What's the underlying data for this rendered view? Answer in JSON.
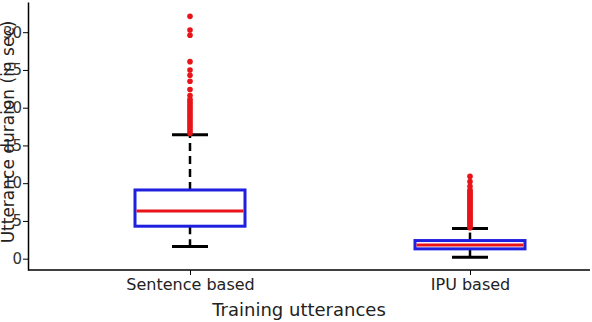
{
  "chart_data": {
    "type": "box",
    "x_label": "Training utterances",
    "y_label": "Utterance duraion (in sec)",
    "categories": [
      "Sentence based",
      "IPU based"
    ],
    "color": "#1f1fe0",
    "ylim": [
      -1.5,
      34
    ],
    "yticks": [
      0,
      5,
      10,
      15,
      20,
      25,
      30
    ],
    "boxes": [
      {
        "whisker_low": 1.6,
        "q1": 4.3,
        "median": 6.3,
        "q3": 9.1,
        "whisker_high": 16.4,
        "outliers": [
          16.6,
          16.9,
          17.2,
          17.5,
          17.8,
          18.1,
          18.4,
          18.7,
          19.0,
          19.3,
          19.6,
          19.9,
          20.2,
          20.5,
          20.8,
          21.1,
          21.6,
          22.4,
          23.5,
          24.3,
          25.0,
          26.1,
          29.6,
          30.3,
          32.1
        ]
      },
      {
        "whisker_low": 0.2,
        "q1": 1.3,
        "median": 1.8,
        "q3": 2.4,
        "whisker_high": 4.0,
        "outliers": [
          4.1,
          4.3,
          4.5,
          4.7,
          4.9,
          5.1,
          5.3,
          5.5,
          5.7,
          5.9,
          6.1,
          6.3,
          6.5,
          6.7,
          6.9,
          7.1,
          7.3,
          7.5,
          7.7,
          7.9,
          8.1,
          8.3,
          8.5,
          8.7,
          8.9,
          9.1,
          9.6,
          10.2,
          10.9
        ]
      }
    ]
  }
}
